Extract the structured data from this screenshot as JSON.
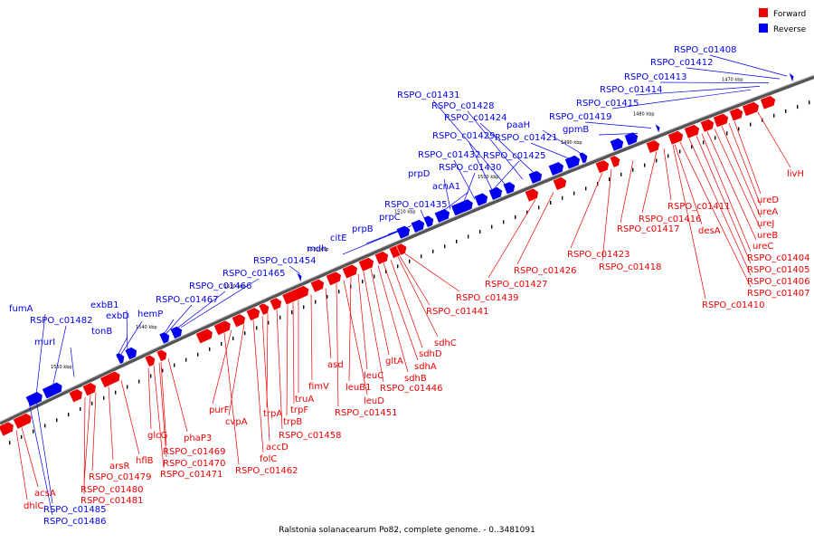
{
  "caption": "Ralstonia solanacearum Po82, complete genome. - 0..3481091",
  "legend": [
    {
      "label": "Forward",
      "color": "#ee0000"
    },
    {
      "label": "Reverse",
      "color": "#0000ee"
    }
  ],
  "colors": {
    "forward": "#ee0000",
    "reverse": "#0000ee",
    "backbone": "#555555"
  },
  "ticks": [
    "1470 kbp",
    "1480 kbp",
    "1490 kbp",
    "1500 kbp",
    "1510 kbp",
    "1520 kbp",
    "1530 kbp",
    "1540 kbp",
    "1550 kbp"
  ],
  "reverse_labels": [
    "RSPO_c01408",
    "RSPO_c01412",
    "RSPO_c01413",
    "RSPO_c01414",
    "RSPO_c01415",
    "RSPO_c01419",
    "gpmB",
    "paaH",
    "RSPO_c01421",
    "RSPO_c01424",
    "RSPO_c01428",
    "RSPO_c01431",
    "RSPO_c01429",
    "RSPO_c01425",
    "RSPO_c01432",
    "RSPO_c01430",
    "prpD",
    "acnA1",
    "RSPO_c01435",
    "prpC",
    "prpB",
    "citE",
    "mdh",
    "RSPO_c01454",
    "RSPO_c01465",
    "RSPO_c01466",
    "RSPO_c01467",
    "hemP",
    "exbB1",
    "exbD",
    "tonB",
    "fumA",
    "RSPO_c01482",
    "murI",
    "RSPO_c01485",
    "RSPO_c01486"
  ],
  "forward_labels": [
    "livH",
    "ureD",
    "ureA",
    "ureJ",
    "ureB",
    "ureC",
    "RSPO_c01404",
    "RSPO_c01405",
    "RSPO_c01406",
    "RSPO_c01407",
    "RSPO_c01410",
    "RSPO_c01411",
    "RSPO_c01416",
    "desA",
    "RSPO_c01417",
    "RSPO_c01418",
    "RSPO_c01423",
    "RSPO_c01426",
    "RSPO_c01427",
    "RSPO_c01439",
    "RSPO_c01441",
    "sdhC",
    "sdhD",
    "sdhA",
    "sdhB",
    "gltA",
    "RSPO_c01446",
    "leuC",
    "leuB1",
    "leuD",
    "RSPO_c01451",
    "asd",
    "fimV",
    "truA",
    "trpB",
    "trpF",
    "RSPO_c01458",
    "trpA",
    "accD",
    "cvpA",
    "folC",
    "purF",
    "RSPO_c01462",
    "phaP3",
    "RSPO_c01469",
    "RSPO_c01470",
    "RSPO_c01471",
    "glcG",
    "hflB",
    "arsR",
    "RSPO_c01479",
    "RSPO_c01480",
    "RSPO_c01481",
    "acsA",
    "dhlC"
  ]
}
